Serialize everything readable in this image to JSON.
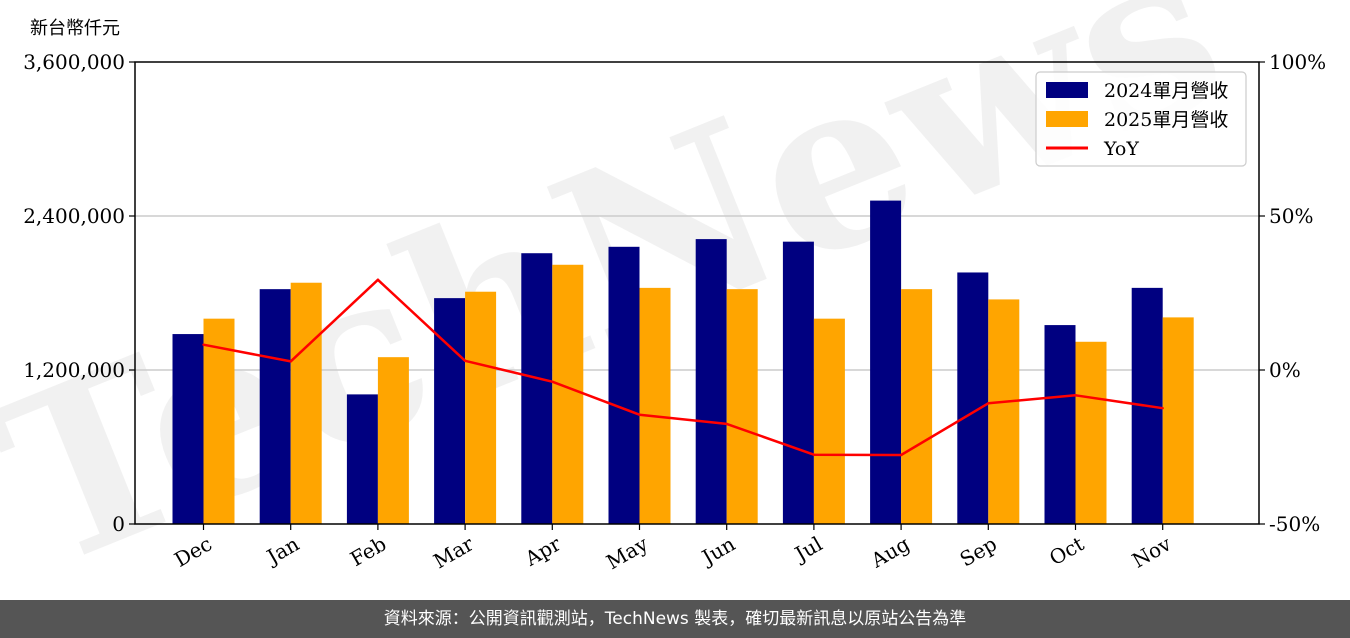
{
  "chart_data": {
    "type": "bar",
    "categories": [
      "Dec",
      "Jan",
      "Feb",
      "Mar",
      "Apr",
      "May",
      "Jun",
      "Jul",
      "Aug",
      "Sep",
      "Oct",
      "Nov"
    ],
    "series": [
      {
        "name": "2024單月營收",
        "color": "#000080",
        "values": [
          1480000,
          1830000,
          1010000,
          1760000,
          2110000,
          2160000,
          2220000,
          2200000,
          2520000,
          1960000,
          1550000,
          1840000
        ]
      },
      {
        "name": "2025單月營收",
        "color": "#FFA500",
        "values": [
          1600000,
          1880000,
          1300000,
          1810000,
          2020000,
          1840000,
          1830000,
          1600000,
          1830000,
          1750000,
          1420000,
          1610000
        ]
      }
    ],
    "line_series": {
      "name": "YoY",
      "color": "#FF0000",
      "axis": "right",
      "values": [
        8.2,
        2.8,
        29.3,
        3.0,
        -3.8,
        -14.5,
        -17.5,
        -27.5,
        -27.6,
        -10.8,
        -8.2,
        -12.4
      ]
    },
    "ylabel": "新台幣仟元",
    "ylim": [
      0,
      3600000
    ],
    "yticks": [
      "0",
      "1,200,000",
      "2,400,000",
      "3,600,000"
    ],
    "ytick_values": [
      0,
      1200000,
      2400000,
      3600000
    ],
    "y2lim": [
      -50,
      100
    ],
    "y2ticks": [
      "-50%",
      "0%",
      "50%",
      "100%"
    ],
    "y2tick_values": [
      -50,
      0,
      50,
      100
    ],
    "grid": "horizontal",
    "legend_position": "top-right",
    "watermark": "TechNews"
  },
  "footer_text": "資料來源：公開資訊觀測站，TechNews 製表，確切最新訊息以原站公告為準"
}
